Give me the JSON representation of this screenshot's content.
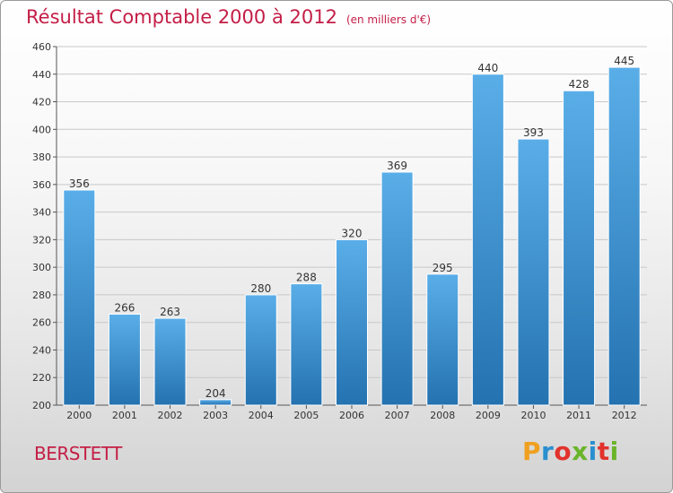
{
  "chart_data": {
    "type": "bar",
    "title": "Résultat Comptable 2000 à 2012",
    "subtitle": "(en milliers d'€)",
    "categories": [
      "2000",
      "2001",
      "2002",
      "2003",
      "2004",
      "2005",
      "2006",
      "2007",
      "2008",
      "2009",
      "2010",
      "2011",
      "2012"
    ],
    "values": [
      356,
      266,
      263,
      204,
      280,
      288,
      320,
      369,
      295,
      440,
      393,
      428,
      445
    ],
    "ylim": [
      200,
      460
    ],
    "yticks": [
      200,
      220,
      240,
      260,
      280,
      300,
      320,
      340,
      360,
      380,
      400,
      420,
      440,
      460
    ],
    "grid": true,
    "bar_color": "#3a8fd0",
    "title_color": "#c41e46"
  },
  "place_name": "BERSTETT",
  "logo": {
    "letters": [
      "P",
      "r",
      "o",
      "x",
      "i",
      "t",
      "i"
    ],
    "colors": [
      "#f0a020",
      "#2a8fd0",
      "#e2322c",
      "#6ab42a",
      "#2a8fd0",
      "#e2322c",
      "#6ab42a"
    ]
  }
}
